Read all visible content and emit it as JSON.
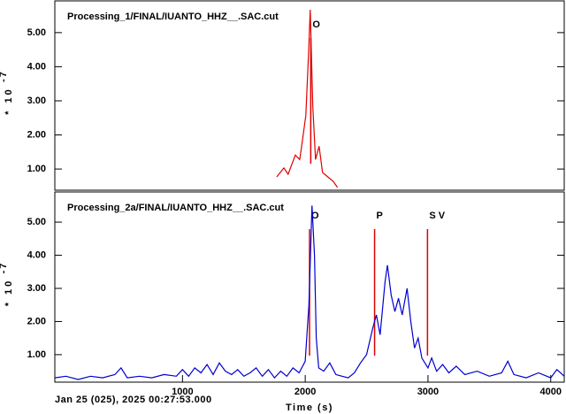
{
  "chart_data": [
    {
      "type": "line",
      "title": "Processing_1/FINAL/IUANTO_HHZ__.SAC.cut",
      "title_color": "#e00000",
      "ylabel": "* 10",
      "ylabel_exponent": "-7",
      "xlim": [
        -40,
        4110
      ],
      "ylim": [
        0.38,
        5.93
      ],
      "yticks": [
        {
          "value": 1,
          "label": "1.00"
        },
        {
          "value": 2,
          "label": "2.00"
        },
        {
          "value": 3,
          "label": "3.00"
        },
        {
          "value": 4,
          "label": "4.00"
        },
        {
          "value": 5,
          "label": "5.00"
        }
      ],
      "series": [
        {
          "name": "Processing_1/FINAL/IUANTO_HHZ__.SAC.cut",
          "color": "#e00000",
          "x": [
            1768,
            1826,
            1861,
            1919,
            1955,
            1976,
            2005,
            2027,
            2041,
            2062,
            2084,
            2113,
            2141,
            2184,
            2228,
            2263
          ],
          "values": [
            0.77,
            1.03,
            0.85,
            1.41,
            1.28,
            1.8,
            2.57,
            4.38,
            5.67,
            2.83,
            1.28,
            1.67,
            0.9,
            0.77,
            0.64,
            0.46
          ]
        }
      ],
      "picks": [
        {
          "label": "O",
          "x": 2045
        }
      ]
    },
    {
      "type": "line",
      "title": "Processing_2a/FINAL/IUANTO_HHZ__.SAC.cut",
      "title_color": "#0000d0",
      "ylabel": "* 10",
      "ylabel_exponent": "-7",
      "xlabel": "Time (s)",
      "date": "Jan 25 (025), 2025 00:27:53.000",
      "xlim": [
        -40,
        4110
      ],
      "ylim": [
        0.17,
        5.91
      ],
      "xticks": [
        1000,
        2000,
        3000,
        4000
      ],
      "yticks": [
        {
          "value": 1,
          "label": "1.00"
        },
        {
          "value": 2,
          "label": "2.00"
        },
        {
          "value": 3,
          "label": "3.00"
        },
        {
          "value": 4,
          "label": "4.00"
        },
        {
          "value": 5,
          "label": "5.00"
        }
      ],
      "series": [
        {
          "name": "Processing_2a/FINAL/IUANTO_HHZ__.SAC.cut",
          "color": "#0000d0",
          "x": [
            -40,
            50,
            150,
            250,
            350,
            450,
            500,
            550,
            650,
            750,
            850,
            950,
            1000,
            1050,
            1100,
            1150,
            1200,
            1250,
            1300,
            1350,
            1400,
            1450,
            1500,
            1550,
            1600,
            1650,
            1700,
            1750,
            1800,
            1850,
            1900,
            1950,
            2000,
            2030,
            2055,
            2075,
            2090,
            2110,
            2150,
            2200,
            2250,
            2300,
            2350,
            2400,
            2450,
            2500,
            2550,
            2580,
            2610,
            2650,
            2670,
            2700,
            2730,
            2760,
            2790,
            2830,
            2860,
            2890,
            2920,
            2950,
            3000,
            3030,
            3070,
            3120,
            3170,
            3230,
            3300,
            3400,
            3500,
            3600,
            3650,
            3700,
            3800,
            3900,
            4000,
            4050,
            4110
          ],
          "values": [
            0.3,
            0.35,
            0.25,
            0.35,
            0.3,
            0.4,
            0.6,
            0.3,
            0.35,
            0.3,
            0.4,
            0.35,
            0.55,
            0.35,
            0.6,
            0.45,
            0.7,
            0.4,
            0.75,
            0.5,
            0.4,
            0.55,
            0.35,
            0.45,
            0.6,
            0.35,
            0.55,
            0.3,
            0.5,
            0.35,
            0.6,
            0.45,
            0.8,
            2.5,
            5.5,
            4.0,
            1.5,
            0.6,
            0.5,
            0.75,
            0.4,
            0.35,
            0.3,
            0.45,
            0.75,
            1.0,
            1.8,
            2.2,
            1.6,
            3.2,
            3.7,
            2.8,
            2.3,
            2.7,
            2.2,
            3.0,
            2.0,
            1.2,
            1.5,
            0.9,
            0.6,
            0.9,
            0.5,
            0.7,
            0.45,
            0.65,
            0.4,
            0.5,
            0.35,
            0.45,
            0.8,
            0.4,
            0.3,
            0.45,
            0.3,
            0.55,
            0.35
          ]
        }
      ],
      "picks": [
        {
          "label": "O",
          "x": 2035
        },
        {
          "label": "P",
          "x": 2565
        },
        {
          "label": "SV",
          "x": 2996
        }
      ]
    }
  ]
}
